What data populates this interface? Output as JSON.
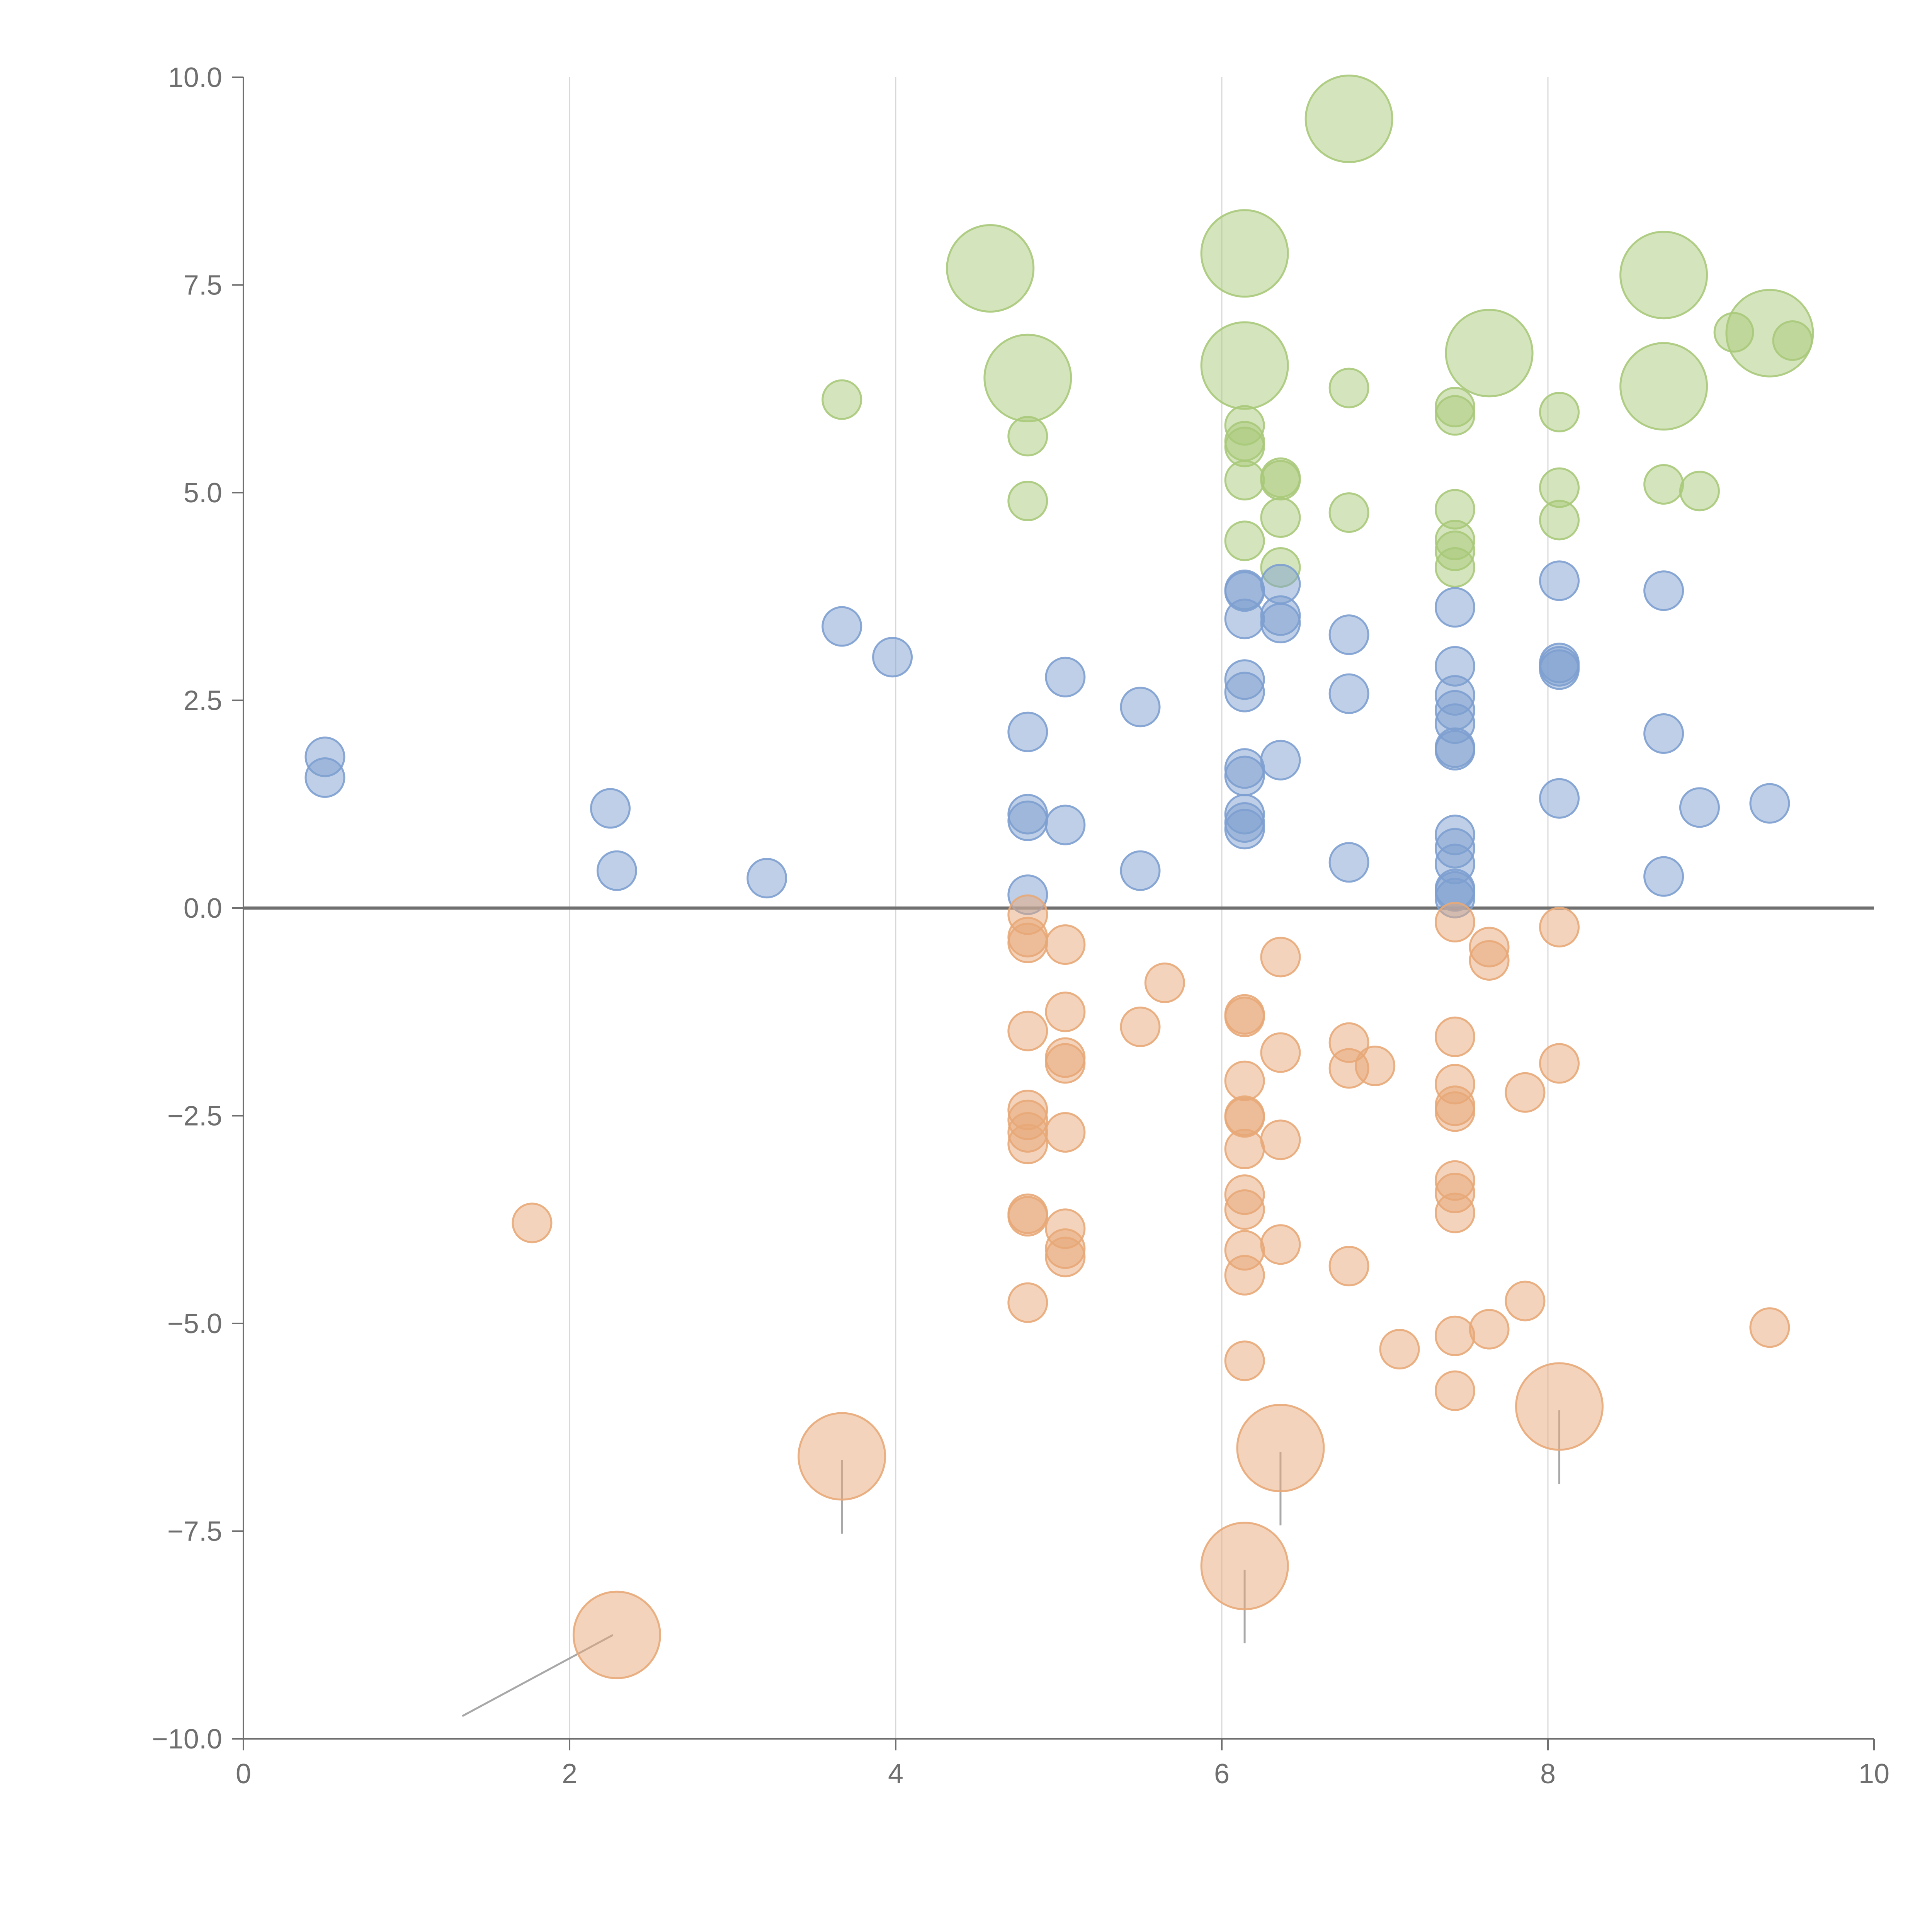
{
  "chart_data": {
    "type": "scatter",
    "title": "",
    "xlabel": "",
    "ylabel": "",
    "xlim": [
      0,
      10
    ],
    "ylim": [
      -10,
      10
    ],
    "grid": "vertical lines at major x ticks",
    "x_ticks": [
      0,
      2,
      4,
      6,
      8,
      10
    ],
    "x_tick_labels": [
      "0",
      "2",
      "4",
      "6",
      "8",
      "10"
    ],
    "y_ticks": [
      10,
      7.5,
      5,
      2.5,
      0,
      -2.5,
      -5,
      -7.5,
      -10
    ],
    "y_tick_labels": [
      "10.0",
      "7.5",
      "5.0",
      "2.5",
      "0.0",
      "−2.5",
      "−5.0",
      "−7.5",
      "−10.0"
    ],
    "zero_line": 0,
    "series": [
      {
        "name": "green",
        "color": "#a9c97a",
        "points": [
          {
            "x": 6.78,
            "y": 9.5,
            "size": "large"
          },
          {
            "x": 4.58,
            "y": 7.7,
            "size": "large"
          },
          {
            "x": 6.14,
            "y": 7.88,
            "size": "large"
          },
          {
            "x": 8.71,
            "y": 7.62,
            "size": "large"
          },
          {
            "x": 9.36,
            "y": 6.92,
            "size": "large"
          },
          {
            "x": 7.64,
            "y": 6.68,
            "size": "large"
          },
          {
            "x": 6.14,
            "y": 6.53,
            "size": "large"
          },
          {
            "x": 4.81,
            "y": 6.38,
            "size": "large"
          },
          {
            "x": 8.71,
            "y": 6.28,
            "size": "large"
          },
          {
            "x": 9.14,
            "y": 6.93,
            "size": "small"
          },
          {
            "x": 9.5,
            "y": 6.83,
            "size": "small"
          },
          {
            "x": 3.67,
            "y": 6.12,
            "size": "small"
          },
          {
            "x": 6.78,
            "y": 6.26,
            "size": "small"
          },
          {
            "x": 7.43,
            "y": 6.03,
            "size": "small"
          },
          {
            "x": 7.43,
            "y": 5.93,
            "size": "small"
          },
          {
            "x": 8.07,
            "y": 5.97,
            "size": "small"
          },
          {
            "x": 6.14,
            "y": 5.81,
            "size": "small"
          },
          {
            "x": 6.14,
            "y": 5.62,
            "size": "small"
          },
          {
            "x": 6.14,
            "y": 5.55,
            "size": "small"
          },
          {
            "x": 4.81,
            "y": 5.68,
            "size": "small"
          },
          {
            "x": 6.14,
            "y": 5.15,
            "size": "small"
          },
          {
            "x": 6.36,
            "y": 5.18,
            "size": "small"
          },
          {
            "x": 6.36,
            "y": 5.15,
            "size": "small"
          },
          {
            "x": 8.07,
            "y": 5.06,
            "size": "small"
          },
          {
            "x": 8.71,
            "y": 5.1,
            "size": "small"
          },
          {
            "x": 8.93,
            "y": 5.02,
            "size": "small"
          },
          {
            "x": 4.81,
            "y": 4.9,
            "size": "small"
          },
          {
            "x": 6.36,
            "y": 4.7,
            "size": "small"
          },
          {
            "x": 6.78,
            "y": 4.76,
            "size": "small"
          },
          {
            "x": 7.43,
            "y": 4.8,
            "size": "small"
          },
          {
            "x": 8.07,
            "y": 4.67,
            "size": "small"
          },
          {
            "x": 7.43,
            "y": 4.43,
            "size": "small"
          },
          {
            "x": 7.43,
            "y": 4.3,
            "size": "small"
          },
          {
            "x": 6.14,
            "y": 4.42,
            "size": "small"
          },
          {
            "x": 6.36,
            "y": 4.1,
            "size": "small"
          },
          {
            "x": 7.43,
            "y": 4.1,
            "size": "small"
          }
        ]
      },
      {
        "name": "blue",
        "color": "#7d9fd0",
        "points": [
          {
            "x": 0.5,
            "y": 1.82
          },
          {
            "x": 0.5,
            "y": 1.57
          },
          {
            "x": 2.25,
            "y": 1.2
          },
          {
            "x": 2.29,
            "y": 0.45
          },
          {
            "x": 3.21,
            "y": 0.36
          },
          {
            "x": 3.67,
            "y": 3.39
          },
          {
            "x": 3.98,
            "y": 3.02
          },
          {
            "x": 4.81,
            "y": 2.12
          },
          {
            "x": 4.81,
            "y": 1.13
          },
          {
            "x": 4.81,
            "y": 1.05
          },
          {
            "x": 4.81,
            "y": 0.16
          },
          {
            "x": 5.04,
            "y": 2.78
          },
          {
            "x": 5.04,
            "y": 1.0
          },
          {
            "x": 5.5,
            "y": 2.42
          },
          {
            "x": 5.5,
            "y": 0.45
          },
          {
            "x": 6.14,
            "y": 3.83
          },
          {
            "x": 6.14,
            "y": 3.81
          },
          {
            "x": 6.14,
            "y": 3.48
          },
          {
            "x": 6.14,
            "y": 2.75
          },
          {
            "x": 6.14,
            "y": 2.6
          },
          {
            "x": 6.14,
            "y": 1.68
          },
          {
            "x": 6.14,
            "y": 1.59
          },
          {
            "x": 6.14,
            "y": 1.13
          },
          {
            "x": 6.14,
            "y": 1.03
          },
          {
            "x": 6.14,
            "y": 0.95
          },
          {
            "x": 6.36,
            "y": 3.9
          },
          {
            "x": 6.36,
            "y": 3.52
          },
          {
            "x": 6.36,
            "y": 3.43
          },
          {
            "x": 6.36,
            "y": 1.78
          },
          {
            "x": 6.78,
            "y": 3.29
          },
          {
            "x": 6.78,
            "y": 2.58
          },
          {
            "x": 6.78,
            "y": 0.55
          },
          {
            "x": 7.43,
            "y": 3.62
          },
          {
            "x": 7.43,
            "y": 2.91
          },
          {
            "x": 7.43,
            "y": 2.56
          },
          {
            "x": 7.43,
            "y": 2.38
          },
          {
            "x": 7.43,
            "y": 2.22
          },
          {
            "x": 7.43,
            "y": 1.93
          },
          {
            "x": 7.43,
            "y": 1.9
          },
          {
            "x": 7.43,
            "y": 0.88
          },
          {
            "x": 7.43,
            "y": 0.72
          },
          {
            "x": 7.43,
            "y": 0.53
          },
          {
            "x": 7.43,
            "y": 0.23
          },
          {
            "x": 7.43,
            "y": 0.2
          },
          {
            "x": 7.43,
            "y": 0.12
          },
          {
            "x": 8.07,
            "y": 3.94
          },
          {
            "x": 8.07,
            "y": 2.95
          },
          {
            "x": 8.07,
            "y": 2.91
          },
          {
            "x": 8.07,
            "y": 2.87
          },
          {
            "x": 8.07,
            "y": 1.32
          },
          {
            "x": 8.71,
            "y": 3.82
          },
          {
            "x": 8.71,
            "y": 2.1
          },
          {
            "x": 8.71,
            "y": 0.38
          },
          {
            "x": 8.93,
            "y": 1.21
          },
          {
            "x": 9.36,
            "y": 1.26
          }
        ]
      },
      {
        "name": "orange",
        "color": "#e8a878",
        "points": [
          {
            "x": 1.77,
            "y": -3.79,
            "size": "small"
          },
          {
            "x": 2.29,
            "y": -8.75,
            "size": "large"
          },
          {
            "x": 3.67,
            "y": -6.6,
            "size": "large"
          },
          {
            "x": 6.14,
            "y": -7.92,
            "size": "large"
          },
          {
            "x": 6.36,
            "y": -6.5,
            "size": "large"
          },
          {
            "x": 8.07,
            "y": -6.0,
            "size": "large"
          },
          {
            "x": 4.81,
            "y": -0.08
          },
          {
            "x": 4.81,
            "y": -0.35
          },
          {
            "x": 4.81,
            "y": -0.42
          },
          {
            "x": 4.81,
            "y": -1.48
          },
          {
            "x": 4.81,
            "y": -2.43
          },
          {
            "x": 4.81,
            "y": -2.55
          },
          {
            "x": 4.81,
            "y": -2.7
          },
          {
            "x": 4.81,
            "y": -2.84
          },
          {
            "x": 4.81,
            "y": -3.68
          },
          {
            "x": 4.81,
            "y": -3.71
          },
          {
            "x": 4.81,
            "y": -4.75
          },
          {
            "x": 5.04,
            "y": -0.44
          },
          {
            "x": 5.04,
            "y": -1.25
          },
          {
            "x": 5.04,
            "y": -1.8
          },
          {
            "x": 5.04,
            "y": -1.87
          },
          {
            "x": 5.04,
            "y": -2.7
          },
          {
            "x": 5.04,
            "y": -3.86
          },
          {
            "x": 5.04,
            "y": -4.1
          },
          {
            "x": 5.04,
            "y": -4.2
          },
          {
            "x": 5.5,
            "y": -1.43
          },
          {
            "x": 5.65,
            "y": -0.9
          },
          {
            "x": 6.14,
            "y": -1.28
          },
          {
            "x": 6.14,
            "y": -1.31
          },
          {
            "x": 6.14,
            "y": -2.08
          },
          {
            "x": 6.14,
            "y": -2.5
          },
          {
            "x": 6.14,
            "y": -2.52
          },
          {
            "x": 6.14,
            "y": -2.9
          },
          {
            "x": 6.14,
            "y": -3.45
          },
          {
            "x": 6.14,
            "y": -3.63
          },
          {
            "x": 6.14,
            "y": -4.12
          },
          {
            "x": 6.14,
            "y": -4.42
          },
          {
            "x": 6.14,
            "y": -5.45
          },
          {
            "x": 6.36,
            "y": -0.59
          },
          {
            "x": 6.36,
            "y": -1.74
          },
          {
            "x": 6.36,
            "y": -2.79
          },
          {
            "x": 6.36,
            "y": -4.05
          },
          {
            "x": 6.78,
            "y": -1.62
          },
          {
            "x": 6.78,
            "y": -1.93
          },
          {
            "x": 6.78,
            "y": -4.31
          },
          {
            "x": 6.94,
            "y": -1.9
          },
          {
            "x": 7.09,
            "y": -5.31
          },
          {
            "x": 7.43,
            "y": -0.17
          },
          {
            "x": 7.43,
            "y": -1.55
          },
          {
            "x": 7.43,
            "y": -2.12
          },
          {
            "x": 7.43,
            "y": -2.38
          },
          {
            "x": 7.43,
            "y": -2.45
          },
          {
            "x": 7.43,
            "y": -3.28
          },
          {
            "x": 7.43,
            "y": -3.43
          },
          {
            "x": 7.43,
            "y": -3.67
          },
          {
            "x": 7.43,
            "y": -5.15
          },
          {
            "x": 7.43,
            "y": -5.81
          },
          {
            "x": 7.64,
            "y": -0.47
          },
          {
            "x": 7.64,
            "y": -0.63
          },
          {
            "x": 7.64,
            "y": -5.07
          },
          {
            "x": 7.86,
            "y": -2.22
          },
          {
            "x": 7.86,
            "y": -4.73
          },
          {
            "x": 8.07,
            "y": -0.23
          },
          {
            "x": 8.07,
            "y": -1.87
          },
          {
            "x": 9.36,
            "y": -5.05
          }
        ]
      }
    ]
  }
}
